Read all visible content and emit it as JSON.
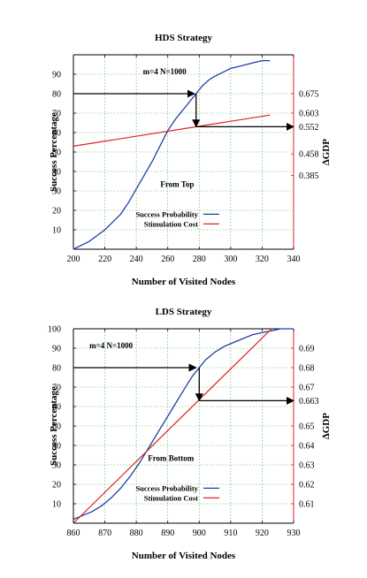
{
  "chart_data": [
    {
      "type": "line",
      "title": "HDS Strategy",
      "xlabel": "Number of Visited Nodes",
      "ylabel": "Success Percentage",
      "y2label": "∆GDP",
      "xlim": [
        200,
        340
      ],
      "ylim": [
        0,
        100
      ],
      "xticks": [
        200,
        220,
        240,
        260,
        280,
        300,
        320,
        340
      ],
      "yticks": [
        10,
        20,
        30,
        40,
        50,
        60,
        70,
        80,
        90
      ],
      "y2ticks": [
        {
          "label": "0.675",
          "y": 80
        },
        {
          "label": "0.603",
          "y": 70
        },
        {
          "label": "0.552",
          "y": 63
        },
        {
          "label": "0.458",
          "y": 49
        },
        {
          "label": "0.385",
          "y": 38
        }
      ],
      "grid": true,
      "legend": "lower-center",
      "annotations": [
        {
          "text": "m=4 N=1000",
          "x": 258,
          "y": 90
        },
        {
          "text": "From Top",
          "x": 266,
          "y": 32
        }
      ],
      "arrows": [
        {
          "from": [
            200,
            80
          ],
          "to": [
            277,
            80
          ]
        },
        {
          "from": [
            278,
            80
          ],
          "to": [
            278,
            63
          ]
        },
        {
          "from": [
            278,
            63
          ],
          "to": [
            340,
            63
          ]
        }
      ],
      "series": [
        {
          "name": "Success Probability",
          "color": "#1f3fa8",
          "x": [
            200,
            205,
            210,
            215,
            220,
            225,
            230,
            235,
            240,
            245,
            250,
            255,
            260,
            265,
            270,
            275,
            278,
            282,
            286,
            290,
            295,
            300,
            305,
            310,
            315,
            320,
            325
          ],
          "y": [
            0,
            2,
            4,
            7,
            10,
            14,
            18,
            24,
            31,
            38,
            45,
            53,
            61,
            67,
            72,
            77,
            80,
            84,
            87,
            89,
            91,
            93,
            94,
            95,
            96,
            97,
            97
          ]
        },
        {
          "name": "Stimulation Cost",
          "color": "#e02020",
          "x": [
            200,
            325
          ],
          "y": [
            53,
            69
          ]
        }
      ]
    },
    {
      "type": "line",
      "title": "LDS Strategy",
      "xlabel": "Number of Visited Nodes",
      "ylabel": "Success Percentage",
      "y2label": "∆GDP",
      "xlim": [
        860,
        930
      ],
      "ylim": [
        0,
        100
      ],
      "xticks": [
        860,
        870,
        880,
        890,
        900,
        910,
        920,
        930
      ],
      "yticks": [
        10,
        20,
        30,
        40,
        50,
        60,
        70,
        80,
        90,
        100
      ],
      "y2ticks": [
        {
          "label": "0.69",
          "y": 90
        },
        {
          "label": "0.68",
          "y": 80
        },
        {
          "label": "0.67",
          "y": 70
        },
        {
          "label": "0.663",
          "y": 63
        },
        {
          "label": "0.65",
          "y": 50
        },
        {
          "label": "0.64",
          "y": 40
        },
        {
          "label": "0.63",
          "y": 30
        },
        {
          "label": "0.62",
          "y": 20
        },
        {
          "label": "0.61",
          "y": 10
        }
      ],
      "grid": true,
      "legend": "lower-center",
      "annotations": [
        {
          "text": "m=4 N=1000",
          "x": 872,
          "y": 90
        },
        {
          "text": "From Bottom",
          "x": 891,
          "y": 32
        }
      ],
      "arrows": [
        {
          "from": [
            860,
            80
          ],
          "to": [
            899,
            80
          ]
        },
        {
          "from": [
            900,
            80
          ],
          "to": [
            900,
            63
          ]
        },
        {
          "from": [
            900,
            63
          ],
          "to": [
            930,
            63
          ]
        }
      ],
      "series": [
        {
          "name": "Success Probability",
          "color": "#1f3fa8",
          "x": [
            860,
            863,
            866,
            869,
            872,
            875,
            878,
            881,
            884,
            887,
            890,
            893,
            896,
            898,
            900,
            902,
            905,
            908,
            911,
            914,
            917,
            920,
            923,
            926,
            930
          ],
          "y": [
            2,
            4,
            6,
            9,
            13,
            18,
            24,
            31,
            39,
            47,
            55,
            63,
            71,
            76,
            80,
            84,
            88,
            91,
            93,
            95,
            97,
            98,
            99,
            100,
            100
          ]
        },
        {
          "name": "Stimulation Cost",
          "color": "#e02020",
          "x": [
            860,
            923
          ],
          "y": [
            0,
            100
          ]
        }
      ]
    }
  ]
}
